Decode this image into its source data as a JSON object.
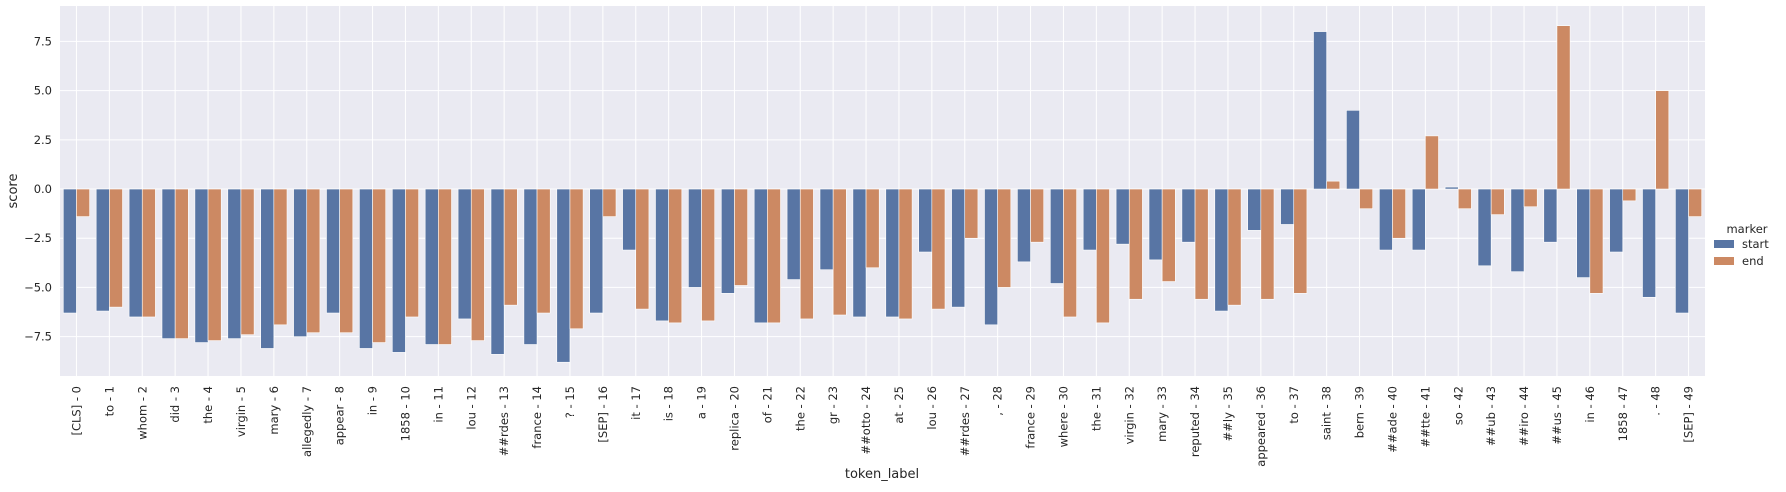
{
  "chart_data": {
    "type": "bar",
    "xlabel": "token_label",
    "ylabel": "score",
    "ylim": [
      -9.5,
      9.3
    ],
    "yticks": [
      -7.5,
      -5.0,
      -2.5,
      0.0,
      2.5,
      5.0,
      7.5
    ],
    "ytick_labels": [
      "−7.5",
      "−5.0",
      "−2.5",
      "0.0",
      "2.5",
      "5.0",
      "7.5"
    ],
    "grid": true,
    "legend_position": "right",
    "legend_title": "marker",
    "categories": [
      "[CLS] - 0",
      "to - 1",
      "whom - 2",
      "did - 3",
      "the - 4",
      "virgin - 5",
      "mary - 6",
      "allegedly - 7",
      "appear - 8",
      "in - 9",
      "1858 - 10",
      "in - 11",
      "lou - 12",
      "##rdes - 13",
      "france - 14",
      "? - 15",
      "[SEP] - 16",
      "it - 17",
      "is - 18",
      "a - 19",
      "replica - 20",
      "of - 21",
      "the - 22",
      "gr - 23",
      "##otto - 24",
      "at - 25",
      "lou - 26",
      "##rdes - 27",
      ", - 28",
      "france - 29",
      "where - 30",
      "the - 31",
      "virgin - 32",
      "mary - 33",
      "reputed - 34",
      "##ly - 35",
      "appeared - 36",
      "to - 37",
      "saint - 38",
      "bern - 39",
      "##ade - 40",
      "##tte - 41",
      "so - 42",
      "##ub - 43",
      "##iro - 44",
      "##us - 45",
      "in - 46",
      "1858 - 47",
      ". - 48",
      "[SEP] - 49"
    ],
    "series": [
      {
        "name": "start",
        "color": "#5875a4",
        "values": [
          -6.3,
          -6.2,
          -6.5,
          -7.6,
          -7.8,
          -7.6,
          -8.1,
          -7.5,
          -6.3,
          -8.1,
          -8.3,
          -7.9,
          -6.6,
          -8.4,
          -7.9,
          -8.8,
          -6.3,
          -3.1,
          -6.7,
          -5.0,
          -5.3,
          -6.8,
          -4.6,
          -4.1,
          -6.5,
          -6.5,
          -3.2,
          -6.0,
          -6.9,
          -3.7,
          -4.8,
          -3.1,
          -2.8,
          -3.6,
          -2.7,
          -6.2,
          -2.1,
          -1.8,
          8.0,
          4.0,
          -3.1,
          -3.1,
          0.1,
          -3.9,
          -4.2,
          -2.7,
          -4.5,
          -3.2,
          -5.5,
          -6.3
        ]
      },
      {
        "name": "end",
        "color": "#cc8963",
        "values": [
          -1.4,
          -6.0,
          -6.5,
          -7.6,
          -7.7,
          -7.4,
          -6.9,
          -7.3,
          -7.3,
          -7.8,
          -6.5,
          -7.9,
          -7.7,
          -5.9,
          -6.3,
          -7.1,
          -1.4,
          -6.1,
          -6.8,
          -6.7,
          -4.9,
          -6.8,
          -6.6,
          -6.4,
          -4.0,
          -6.6,
          -6.1,
          -2.5,
          -5.0,
          -2.7,
          -6.5,
          -6.8,
          -5.6,
          -4.7,
          -5.6,
          -5.9,
          -5.6,
          -5.3,
          0.4,
          -1.0,
          -2.5,
          2.7,
          -1.0,
          -1.3,
          -0.9,
          8.3,
          -5.3,
          -0.6,
          5.0,
          -1.4
        ]
      }
    ]
  }
}
